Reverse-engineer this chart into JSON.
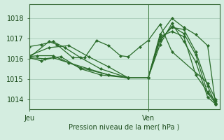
{
  "background_color": "#d4ede0",
  "grid_color": "#9ec4b0",
  "line_color": "#2a6b2a",
  "marker_color": "#2a6b2a",
  "title": "Pression niveau de la mer( hPa )",
  "xlabel_jeu": "Jeu",
  "xlabel_ven": "Ven",
  "yticks": [
    1014,
    1015,
    1016,
    1017,
    1018
  ],
  "ylim": [
    1013.5,
    1018.7
  ],
  "xlim": [
    0,
    48
  ],
  "jeu_x": 0,
  "ven_x": 30,
  "xtick_positions": [
    0,
    30
  ],
  "series": [
    [
      0,
      1016.15,
      5,
      1016.55,
      10,
      1016.65,
      15,
      1016.1,
      20,
      1015.6,
      25,
      1015.05,
      30,
      1015.05,
      33,
      1017.2,
      36,
      1018.0,
      39,
      1017.55,
      42,
      1017.2,
      45,
      1016.65,
      47,
      1013.75
    ],
    [
      0,
      1016.05,
      3,
      1015.9,
      6,
      1016.05,
      10,
      1015.8,
      15,
      1015.5,
      20,
      1015.2,
      25,
      1015.05,
      30,
      1015.05,
      33,
      1016.9,
      36,
      1017.6,
      39,
      1017.25,
      42,
      1016.2,
      45,
      1014.3,
      47,
      1013.8
    ],
    [
      0,
      1016.05,
      4,
      1016.0,
      8,
      1016.1,
      13,
      1015.5,
      18,
      1015.2,
      25,
      1015.05,
      30,
      1015.05,
      33,
      1016.7,
      36,
      1017.75,
      39,
      1016.85,
      42,
      1015.85,
      45,
      1014.1,
      47,
      1013.75
    ],
    [
      0,
      1016.6,
      3,
      1016.7,
      6,
      1016.85,
      9,
      1016.55,
      13,
      1016.05,
      18,
      1015.5,
      25,
      1015.05,
      30,
      1015.05,
      33,
      1017.1,
      36,
      1017.35,
      39,
      1017.1,
      42,
      1015.2,
      45,
      1014.35,
      47,
      1013.9
    ],
    [
      0,
      1016.1,
      2,
      1016.15,
      6,
      1016.15,
      13,
      1015.55,
      20,
      1015.2,
      25,
      1015.05,
      30,
      1015.05,
      33,
      1016.95,
      36,
      1017.55,
      39,
      1017.45,
      42,
      1016.35,
      45,
      1014.65,
      47,
      1013.75
    ],
    [
      0,
      1016.05,
      5,
      1016.85,
      7,
      1016.7,
      11,
      1016.05,
      14,
      1016.05,
      17,
      1016.9,
      20,
      1016.65,
      23,
      1016.15,
      25,
      1016.1,
      28,
      1016.6,
      30,
      1016.9,
      33,
      1017.7,
      36,
      1016.35,
      45,
      1014.8,
      47,
      1014.0
    ]
  ]
}
